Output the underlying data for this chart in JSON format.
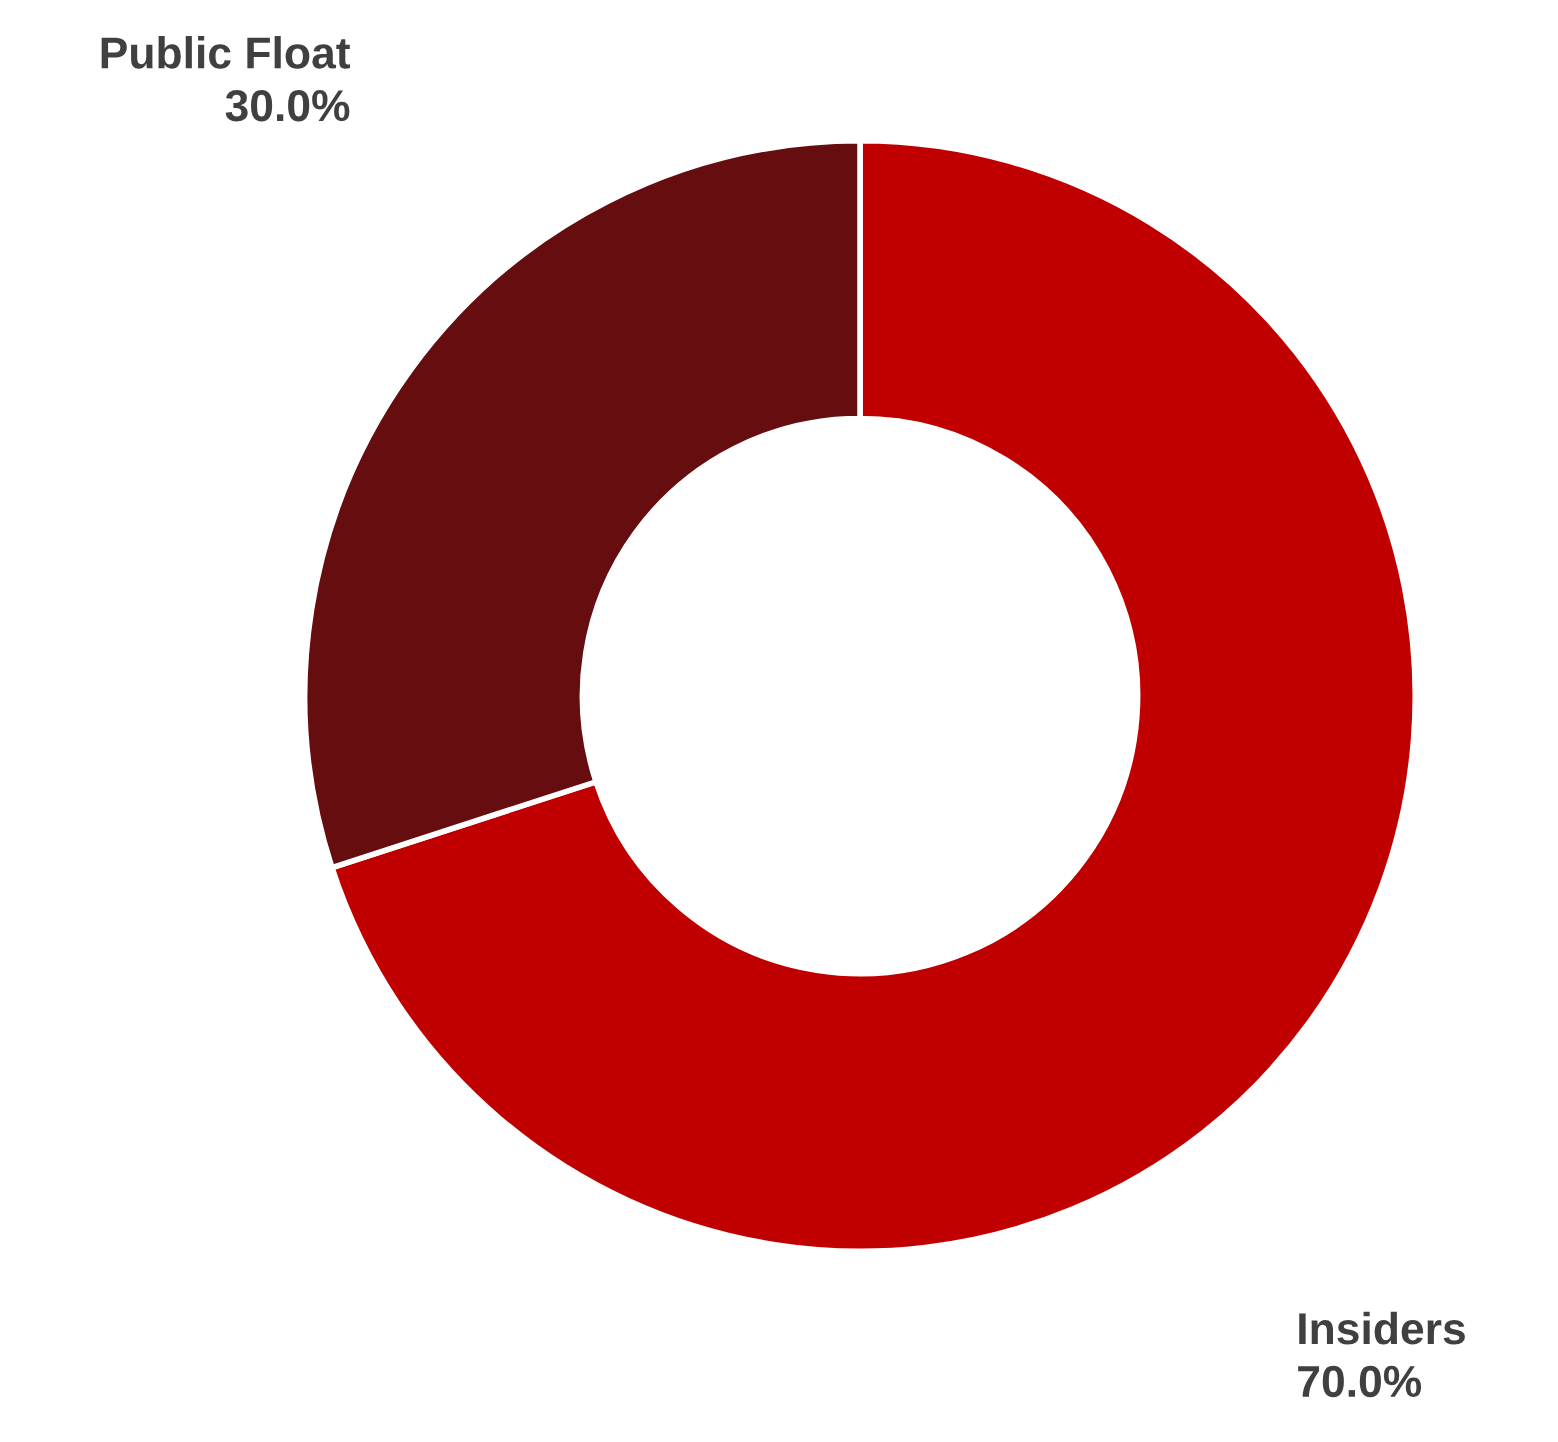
{
  "chart_data": {
    "type": "donut",
    "categories": [
      "Insiders",
      "Public Float"
    ],
    "values": [
      70.0,
      30.0
    ],
    "colors": [
      "#c00000",
      "#650d0f"
    ],
    "value_labels": [
      "70.0%",
      "30.0%"
    ],
    "legend": false
  }
}
